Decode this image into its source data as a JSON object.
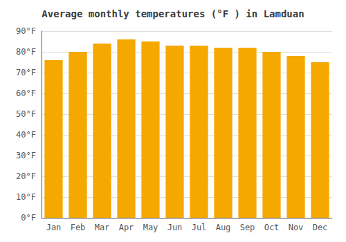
{
  "chart_data": {
    "type": "bar",
    "title": "Average monthly temperatures (°F ) in Lamduan",
    "categories": [
      "Jan",
      "Feb",
      "Mar",
      "Apr",
      "May",
      "Jun",
      "Jul",
      "Aug",
      "Sep",
      "Oct",
      "Nov",
      "Dec"
    ],
    "values": [
      76,
      80,
      84,
      86,
      85,
      83,
      83,
      82,
      82,
      80,
      78,
      75
    ],
    "color": "#F5A800",
    "ylim": [
      0,
      90
    ],
    "yticks": [
      {
        "value": 0,
        "label": "0°F"
      },
      {
        "value": 10,
        "label": "10°F"
      },
      {
        "value": 20,
        "label": "20°F"
      },
      {
        "value": 30,
        "label": "30°F"
      },
      {
        "value": 40,
        "label": "40°F"
      },
      {
        "value": 50,
        "label": "50°F"
      },
      {
        "value": 60,
        "label": "60°F"
      },
      {
        "value": 70,
        "label": "70°F"
      },
      {
        "value": 80,
        "label": "80°F"
      },
      {
        "value": 90,
        "label": "90°F"
      }
    ],
    "grid": true
  }
}
